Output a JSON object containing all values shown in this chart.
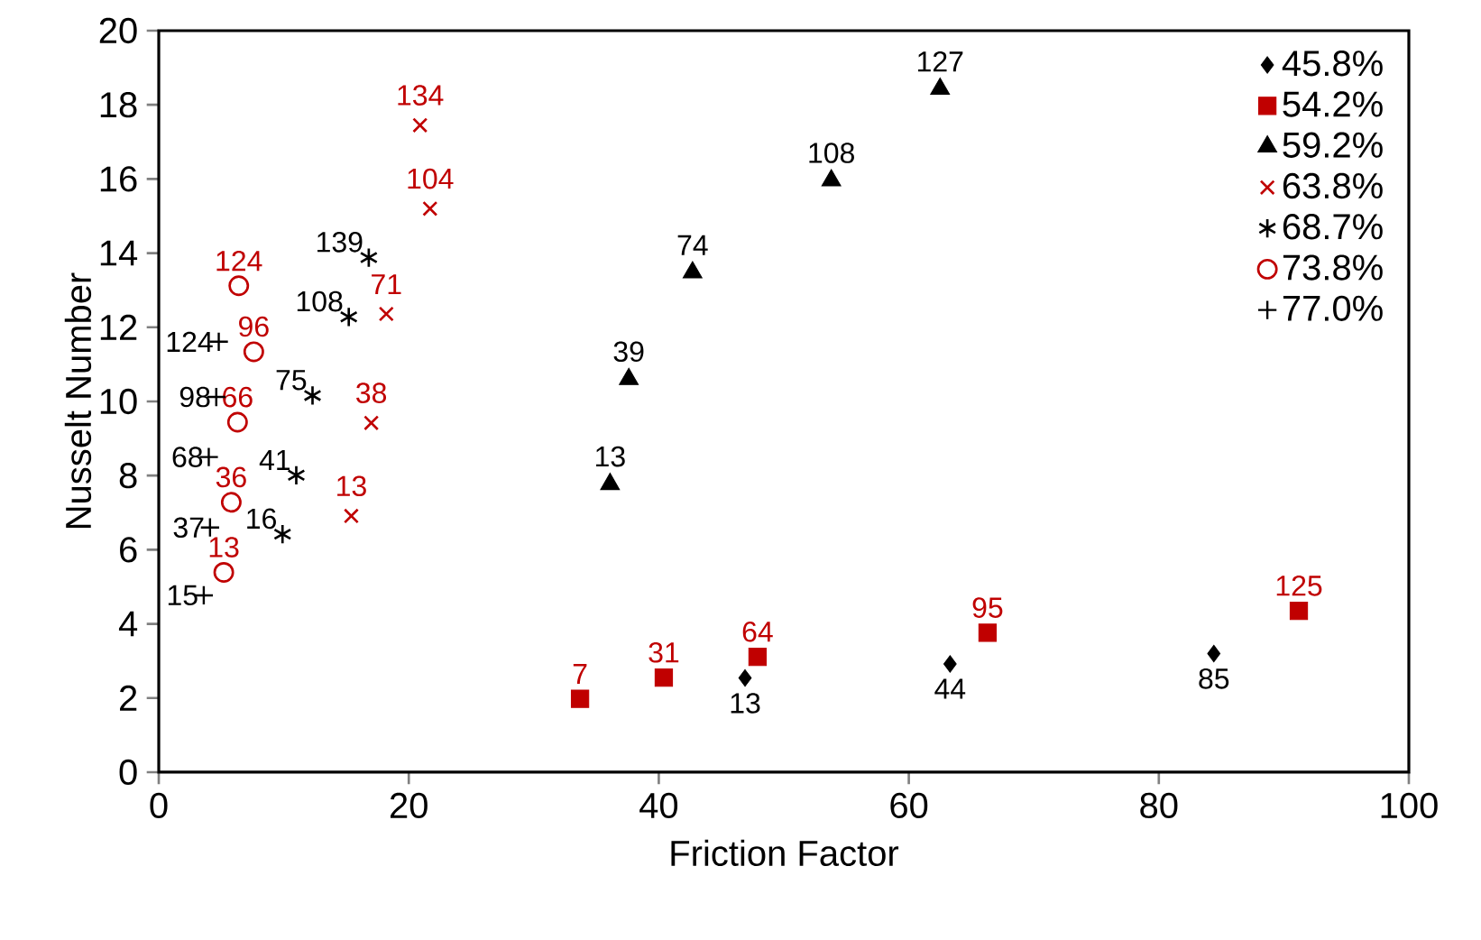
{
  "chart_data": {
    "type": "scatter",
    "xlabel": "Friction Factor",
    "ylabel": "Nusselt Number",
    "xlim": [
      0,
      100
    ],
    "ylim": [
      0,
      20
    ],
    "xticks": [
      0,
      20,
      40,
      60,
      80,
      100
    ],
    "yticks": [
      0,
      2,
      4,
      6,
      8,
      10,
      12,
      14,
      16,
      18,
      20
    ],
    "grid": false,
    "legend": "top right",
    "series": [
      {
        "name": "45.8%",
        "color": "#000000",
        "marker": "diamond",
        "x": [
          46.9,
          63.3,
          84.4
        ],
        "values": [
          2.54,
          2.92,
          3.2
        ]
      },
      {
        "name": "54.2%",
        "color": "#c00000",
        "marker": "square",
        "x": [
          33.7,
          40.4,
          47.9,
          66.3,
          91.2
        ],
        "values": [
          1.98,
          2.55,
          3.11,
          3.76,
          4.35
        ]
      },
      {
        "name": "59.2%",
        "color": "#000000",
        "marker": "triangle",
        "x": [
          36.1,
          37.6,
          42.7,
          53.8,
          62.5
        ],
        "values": [
          7.77,
          10.6,
          13.48,
          15.96,
          18.43
        ]
      },
      {
        "name": "63.8%",
        "color": "#c00000",
        "marker": "cross",
        "x": [
          15.4,
          17.0,
          18.2,
          21.7,
          20.9
        ],
        "values": [
          6.91,
          9.42,
          12.36,
          15.2,
          17.45
        ]
      },
      {
        "name": "68.7%",
        "color": "#000000",
        "x": [
          9.9,
          11.0,
          12.3,
          15.2,
          16.8
        ],
        "values": [
          6.42,
          8.01,
          10.16,
          12.28,
          13.88
        ]
      },
      {
        "name": "73.8%",
        "color": "#c00000",
        "marker": "circle",
        "x": [
          5.2,
          5.8,
          6.3,
          7.6,
          6.4
        ],
        "values": [
          5.39,
          7.28,
          9.44,
          11.34,
          13.12
        ]
      },
      {
        "name": "77.0%",
        "color": "#000000",
        "marker": "plus",
        "x": [
          3.6,
          4.1,
          4.0,
          4.6,
          4.8
        ],
        "values": [
          4.77,
          6.6,
          8.5,
          10.12,
          11.61
        ]
      }
    ],
    "annotations": [
      {
        "text": "13",
        "x": 46.9,
        "y": 2.54
      },
      {
        "text": "44",
        "x": 63.3,
        "y": 2.92
      },
      {
        "text": "85",
        "x": 84.4,
        "y": 3.2
      },
      {
        "text": "7",
        "x": 33.7,
        "y": 1.98
      },
      {
        "text": "31",
        "x": 40.4,
        "y": 2.55
      },
      {
        "text": "64",
        "x": 47.9,
        "y": 3.11
      },
      {
        "text": "95",
        "x": 66.3,
        "y": 3.76
      },
      {
        "text": "125",
        "x": 91.2,
        "y": 4.35
      },
      {
        "text": "13",
        "x": 36.1,
        "y": 7.77
      },
      {
        "text": "39",
        "x": 37.6,
        "y": 10.6
      },
      {
        "text": "74",
        "x": 42.7,
        "y": 13.48
      },
      {
        "text": "108",
        "x": 53.8,
        "y": 15.96
      },
      {
        "text": "127",
        "x": 62.5,
        "y": 18.43
      },
      {
        "text": "13",
        "x": 15.4,
        "y": 6.91
      },
      {
        "text": "38",
        "x": 17.0,
        "y": 9.42
      },
      {
        "text": "71",
        "x": 18.2,
        "y": 12.36
      },
      {
        "text": "104",
        "x": 21.7,
        "y": 15.2
      },
      {
        "text": "134",
        "x": 20.9,
        "y": 17.45
      },
      {
        "text": "16",
        "x": 9.9,
        "y": 6.42
      },
      {
        "text": "41",
        "x": 11.0,
        "y": 8.01
      },
      {
        "text": "75",
        "x": 12.3,
        "y": 10.16
      },
      {
        "text": "108",
        "x": 15.2,
        "y": 12.28
      },
      {
        "text": "139",
        "x": 16.8,
        "y": 13.88
      },
      {
        "text": "13",
        "x": 5.2,
        "y": 5.39
      },
      {
        "text": "36",
        "x": 5.8,
        "y": 7.28
      },
      {
        "text": "66",
        "x": 6.3,
        "y": 9.44
      },
      {
        "text": "96",
        "x": 7.6,
        "y": 11.34
      },
      {
        "text": "124",
        "x": 6.4,
        "y": 13.12
      },
      {
        "text": "15",
        "x": 3.6,
        "y": 4.77
      },
      {
        "text": "37",
        "x": 4.1,
        "y": 6.6
      },
      {
        "text": "68",
        "x": 4.0,
        "y": 8.5
      },
      {
        "text": "98",
        "x": 4.6,
        "y": 10.12
      },
      {
        "text": "124",
        "x": 4.8,
        "y": 11.61
      }
    ]
  }
}
